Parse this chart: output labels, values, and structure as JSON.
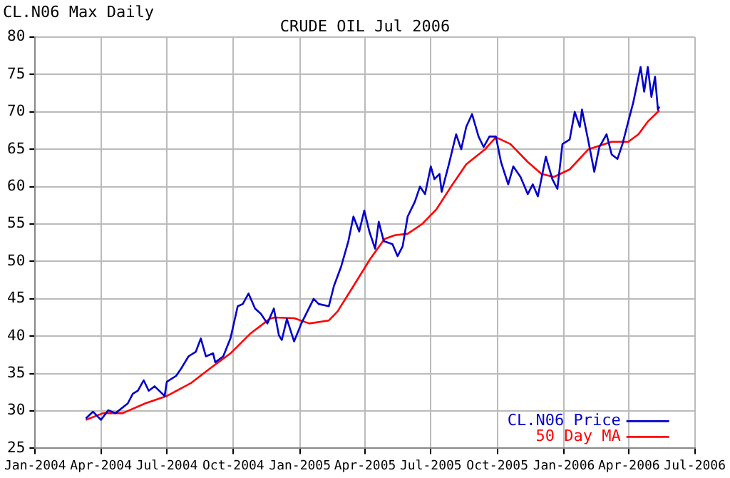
{
  "chart_data": {
    "type": "line",
    "title": "CRUDE OIL Jul 2006",
    "subtitle": "CL.N06 Max Daily",
    "xlim": [
      "2004-01",
      "2006-07"
    ],
    "xticks": [
      {
        "value": "2004-01",
        "label": "Jan-2004"
      },
      {
        "value": "2004-04",
        "label": "Apr-2004"
      },
      {
        "value": "2004-07",
        "label": "Jul-2004"
      },
      {
        "value": "2004-10",
        "label": "Oct-2004"
      },
      {
        "value": "2005-01",
        "label": "Jan-2005"
      },
      {
        "value": "2005-04",
        "label": "Apr-2005"
      },
      {
        "value": "2005-07",
        "label": "Jul-2005"
      },
      {
        "value": "2005-10",
        "label": "Oct-2005"
      },
      {
        "value": "2006-01",
        "label": "Jan-2006"
      },
      {
        "value": "2006-04",
        "label": "Apr-2006"
      },
      {
        "value": "2006-07",
        "label": "Jul-2006"
      }
    ],
    "ylim": [
      25,
      80
    ],
    "yticks": [
      25,
      30,
      35,
      40,
      45,
      50,
      55,
      60,
      65,
      70,
      75,
      80
    ],
    "grid": true,
    "legend": "bottom right",
    "marker": "none",
    "line_style": "solid",
    "series": [
      {
        "name": "CL.N06 Price",
        "color": "#0000cc",
        "x": [
          "2004-03-11",
          "2004-03-21",
          "2004-04-01",
          "2004-04-11",
          "2004-04-21",
          "2004-05-08",
          "2004-05-15",
          "2004-05-22",
          "2004-05-30",
          "2004-06-06",
          "2004-06-14",
          "2004-06-28",
          "2004-07-01",
          "2004-07-14",
          "2004-07-21",
          "2004-07-31",
          "2004-08-10",
          "2004-08-17",
          "2004-08-24",
          "2004-09-03",
          "2004-09-06",
          "2004-09-17",
          "2004-09-27",
          "2004-10-07",
          "2004-10-14",
          "2004-10-22",
          "2004-10-31",
          "2004-11-08",
          "2004-11-17",
          "2004-11-26",
          "2004-12-03",
          "2004-12-07",
          "2004-12-14",
          "2004-12-24",
          "2005-01-03",
          "2005-01-20",
          "2005-01-27",
          "2005-02-10",
          "2005-02-17",
          "2005-02-27",
          "2005-03-09",
          "2005-03-16",
          "2005-03-24",
          "2005-03-31",
          "2005-04-07",
          "2005-04-15",
          "2005-04-20",
          "2005-04-27",
          "2005-05-09",
          "2005-05-16",
          "2005-05-23",
          "2005-05-30",
          "2005-06-09",
          "2005-06-16",
          "2005-06-23",
          "2005-07-01",
          "2005-07-06",
          "2005-07-13",
          "2005-07-16",
          "2005-07-26",
          "2005-08-05",
          "2005-08-12",
          "2005-08-19",
          "2005-08-27",
          "2005-09-05",
          "2005-09-12",
          "2005-09-20",
          "2005-09-29",
          "2005-10-06",
          "2005-10-16",
          "2005-10-23",
          "2005-11-02",
          "2005-11-12",
          "2005-11-19",
          "2005-11-26",
          "2005-12-07",
          "2005-12-16",
          "2005-12-23",
          "2005-12-30",
          "2006-01-09",
          "2006-01-16",
          "2006-01-23",
          "2006-01-26",
          "2006-02-04",
          "2006-02-12",
          "2006-02-19",
          "2006-03-01",
          "2006-03-08",
          "2006-03-16",
          "2006-03-23",
          "2006-03-31",
          "2006-04-07",
          "2006-04-17",
          "2006-04-22",
          "2006-04-27",
          "2006-05-02",
          "2006-05-07",
          "2006-05-11",
          "2006-05-13"
        ],
        "values": [
          29.0,
          29.9,
          28.8,
          30.1,
          29.7,
          31.0,
          32.3,
          32.7,
          34.1,
          32.7,
          33.3,
          32.0,
          33.9,
          34.7,
          35.7,
          37.3,
          37.9,
          39.7,
          37.3,
          37.7,
          36.5,
          37.3,
          39.7,
          44.0,
          44.3,
          45.7,
          43.7,
          43.0,
          41.7,
          43.7,
          40.1,
          39.5,
          42.3,
          39.3,
          41.7,
          45.0,
          44.3,
          44.0,
          46.7,
          49.3,
          52.7,
          56.0,
          54.0,
          56.8,
          54.0,
          51.7,
          55.3,
          52.7,
          52.3,
          50.7,
          52.0,
          56.0,
          58.0,
          60.0,
          59.0,
          62.7,
          61.0,
          61.7,
          59.3,
          63.0,
          67.0,
          65.0,
          68.0,
          69.7,
          66.7,
          65.3,
          66.7,
          66.7,
          63.3,
          60.3,
          62.7,
          61.3,
          59.0,
          60.3,
          58.7,
          64.0,
          61.0,
          59.7,
          65.7,
          66.3,
          70.0,
          68.0,
          70.3,
          66.0,
          62.0,
          65.3,
          67.0,
          64.3,
          63.7,
          65.7,
          68.7,
          71.3,
          76.0,
          72.7,
          76.0,
          72.0,
          74.7,
          70.3,
          70.7
        ]
      },
      {
        "name": "50 Day MA",
        "color": "#ff0000",
        "x": [
          "2004-03-11",
          "2004-04-04",
          "2004-05-01",
          "2004-06-01",
          "2004-07-01",
          "2004-08-03",
          "2004-08-30",
          "2004-09-27",
          "2004-10-24",
          "2004-11-20",
          "2004-11-27",
          "2004-12-24",
          "2005-01-14",
          "2005-02-10",
          "2005-02-22",
          "2005-03-16",
          "2005-04-08",
          "2005-04-28",
          "2005-05-12",
          "2005-05-30",
          "2005-06-19",
          "2005-07-09",
          "2005-07-29",
          "2005-08-19",
          "2005-09-14",
          "2005-09-29",
          "2005-10-19",
          "2005-11-12",
          "2005-12-01",
          "2005-12-18",
          "2006-01-09",
          "2006-02-04",
          "2006-03-08",
          "2006-03-31",
          "2006-04-14",
          "2006-04-27",
          "2006-05-13"
        ],
        "values": [
          28.8,
          29.7,
          29.7,
          31.0,
          32.0,
          33.7,
          35.7,
          37.7,
          40.3,
          42.3,
          42.5,
          42.4,
          41.7,
          42.1,
          43.3,
          46.7,
          50.3,
          53.0,
          53.5,
          53.7,
          55.0,
          57.0,
          60.0,
          63.0,
          65.0,
          66.6,
          65.7,
          63.3,
          61.7,
          61.3,
          62.3,
          65.0,
          66.0,
          66.0,
          67.0,
          68.7,
          70.2
        ]
      }
    ]
  }
}
